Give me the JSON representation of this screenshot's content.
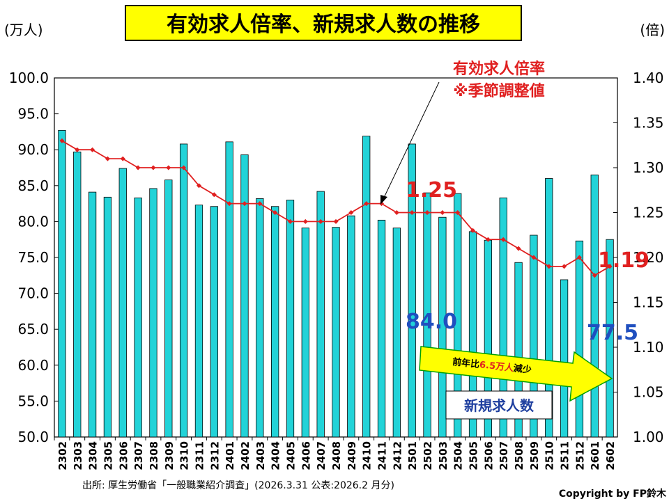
{
  "title": "有効求人倍率、新規求人数の推移",
  "left_unit": "(万人)",
  "right_unit": "(倍)",
  "source": "出所: 厚生労働省「一般職業紹介調査」(2026.3.31 公表:2026.2 月分)",
  "copyright": "Copyright by FP鈴木",
  "annotations": {
    "ratio_label_line1": "有効求人倍率",
    "ratio_label_line2": "※季節調整値",
    "ratio_2501": "1.25",
    "ratio_latest": "1.19",
    "jobs_2501": "84.0",
    "jobs_latest": "77.5",
    "arrow_text_prefix": "前年比",
    "arrow_text_value": "6.5万人",
    "arrow_text_suffix": "減少",
    "legend_bar": "新規求人数"
  },
  "colors": {
    "bar_fill": "#22d3d8",
    "bar_stroke": "#000000",
    "line": "#e02020",
    "title_bg": "#ffff00",
    "label_red": "#e02020",
    "label_blue": "#1f4fbf",
    "arrow_fill": "#ffff00",
    "arrow_edge": "#00a000"
  },
  "chart_data": {
    "type": "bar",
    "categories": [
      "2302",
      "2303",
      "2304",
      "2305",
      "2306",
      "2307",
      "2308",
      "2309",
      "2310",
      "2311",
      "2312",
      "2401",
      "2402",
      "2403",
      "2404",
      "2405",
      "2406",
      "2407",
      "2408",
      "2409",
      "2410",
      "2411",
      "2412",
      "2501",
      "2502",
      "2503",
      "2504",
      "2505",
      "2506",
      "2507",
      "2508",
      "2509",
      "2510",
      "2511",
      "2512",
      "2601",
      "2602"
    ],
    "series": [
      {
        "name": "新規求人数",
        "type": "bar",
        "axis": "left",
        "values": [
          92.7,
          89.7,
          84.1,
          83.4,
          87.4,
          83.3,
          84.6,
          85.8,
          90.8,
          82.3,
          82.1,
          91.1,
          89.3,
          83.2,
          82.1,
          83.0,
          79.1,
          84.2,
          79.2,
          80.8,
          91.9,
          80.2,
          79.1,
          90.8,
          84.0,
          80.6,
          83.9,
          78.6,
          77.4,
          83.3,
          74.3,
          78.1,
          86.0,
          71.9,
          77.3,
          86.5,
          77.5
        ]
      },
      {
        "name": "有効求人倍率",
        "type": "line",
        "axis": "right",
        "values": [
          1.33,
          1.32,
          1.32,
          1.31,
          1.31,
          1.3,
          1.3,
          1.3,
          1.3,
          1.28,
          1.27,
          1.26,
          1.26,
          1.26,
          1.25,
          1.24,
          1.24,
          1.24,
          1.24,
          1.25,
          1.26,
          1.26,
          1.25,
          1.25,
          1.25,
          1.25,
          1.25,
          1.23,
          1.22,
          1.22,
          1.21,
          1.2,
          1.19,
          1.19,
          1.2,
          1.18,
          1.19
        ]
      }
    ],
    "ylim_left": [
      50.0,
      100.0
    ],
    "yticks_left": [
      "50.0",
      "55.0",
      "60.0",
      "65.0",
      "70.0",
      "75.0",
      "80.0",
      "85.0",
      "90.0",
      "95.0",
      "100.0"
    ],
    "ylim_right": [
      1.0,
      1.4
    ],
    "yticks_right": [
      "1.00",
      "1.05",
      "1.10",
      "1.15",
      "1.20",
      "1.25",
      "1.30",
      "1.35",
      "1.40"
    ],
    "grid": false
  }
}
